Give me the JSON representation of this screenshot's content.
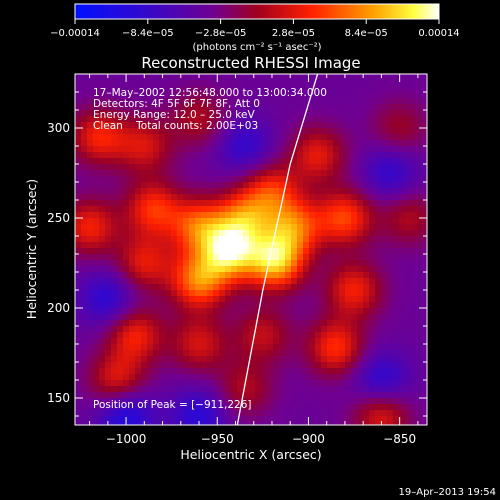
{
  "chart_data": {
    "type": "heatmap",
    "title": "Reconstructed RHESSI Image",
    "xlabel": "Heliocentric X (arcsec)",
    "ylabel": "Heliocentric Y (arcsec)",
    "xlim": [
      -1028,
      -835
    ],
    "ylim": [
      135,
      330
    ],
    "xticks": [
      -1000,
      -950,
      -900,
      -850
    ],
    "xtick_labels": [
      "−1000",
      "−950",
      "−900",
      "−850"
    ],
    "yticks": [
      150,
      200,
      250,
      300
    ],
    "ytick_labels": [
      "150",
      "200",
      "250",
      "300"
    ],
    "colorbar": {
      "range": [
        -0.00014,
        0.00014
      ],
      "ticks": [
        -0.00014,
        -8.4e-05,
        -2.8e-05,
        2.8e-05,
        8.4e-05,
        0.00014
      ],
      "tick_labels": [
        "−0.00014",
        "−8.4e−05",
        "−2.8e−05",
        "2.8e−05",
        "8.4e−05",
        "0.00014"
      ],
      "units_label": "(photons cm⁻² s⁻¹ asec⁻²)",
      "colors": [
        "#0000ff",
        "#4000c0",
        "#800080",
        "#c00000",
        "#ff5000",
        "#ffb000",
        "#ffffff"
      ]
    },
    "annotations": [
      "17–May–2002 12:56:48.000 to 13:00:34.000",
      "Detectors: 4F 5F 6F 7F 8F, Att 0",
      "Energy Range: 12.0 – 25.0 keV",
      "Clean    Total counts: 2.00E+03"
    ],
    "peak_label": "Position of Peak = [−911,226]",
    "peak": [
      -911,
      226
    ],
    "blobs": [
      {
        "x": -943,
        "y": 231,
        "v": 1.0
      },
      {
        "x": -918,
        "y": 226,
        "v": 1.0
      },
      {
        "x": -935,
        "y": 250,
        "v": 0.7
      },
      {
        "x": -908,
        "y": 245,
        "v": 0.7
      },
      {
        "x": -960,
        "y": 215,
        "v": 0.8
      },
      {
        "x": -960,
        "y": 245,
        "v": 0.7
      },
      {
        "x": -985,
        "y": 255,
        "v": 0.6
      },
      {
        "x": -990,
        "y": 225,
        "v": 0.5
      },
      {
        "x": -1020,
        "y": 245,
        "v": 0.55
      },
      {
        "x": -1015,
        "y": 295,
        "v": 0.55
      },
      {
        "x": -990,
        "y": 290,
        "v": 0.45
      },
      {
        "x": -920,
        "y": 265,
        "v": 0.55
      },
      {
        "x": -895,
        "y": 285,
        "v": 0.5
      },
      {
        "x": -880,
        "y": 250,
        "v": 0.65
      },
      {
        "x": -875,
        "y": 210,
        "v": 0.55
      },
      {
        "x": -885,
        "y": 178,
        "v": 0.6
      },
      {
        "x": -960,
        "y": 180,
        "v": 0.45
      },
      {
        "x": -925,
        "y": 185,
        "v": 0.4
      },
      {
        "x": -995,
        "y": 185,
        "v": 0.55
      },
      {
        "x": -1005,
        "y": 160,
        "v": 0.5
      },
      {
        "x": -935,
        "y": 155,
        "v": 0.35
      },
      {
        "x": -860,
        "y": 140,
        "v": 0.5
      },
      {
        "x": -845,
        "y": 250,
        "v": 0.35
      },
      {
        "x": -960,
        "y": 305,
        "v": 0.35
      },
      {
        "x": -850,
        "y": 300,
        "v": 0.3
      },
      {
        "x": -1000,
        "y": 140,
        "v": -0.5
      },
      {
        "x": -960,
        "y": 140,
        "v": -0.4
      },
      {
        "x": -860,
        "y": 160,
        "v": -0.4
      },
      {
        "x": -1010,
        "y": 205,
        "v": -0.4
      },
      {
        "x": -935,
        "y": 290,
        "v": -0.35
      },
      {
        "x": -855,
        "y": 275,
        "v": -0.35
      }
    ],
    "limb_curve": [
      [
        -939,
        135
      ],
      [
        -925,
        210
      ],
      [
        -910,
        280
      ],
      [
        -895,
        330
      ]
    ],
    "grid": false,
    "legend": "none"
  },
  "footer": {
    "date": "19–Apr–2013 19:54"
  }
}
